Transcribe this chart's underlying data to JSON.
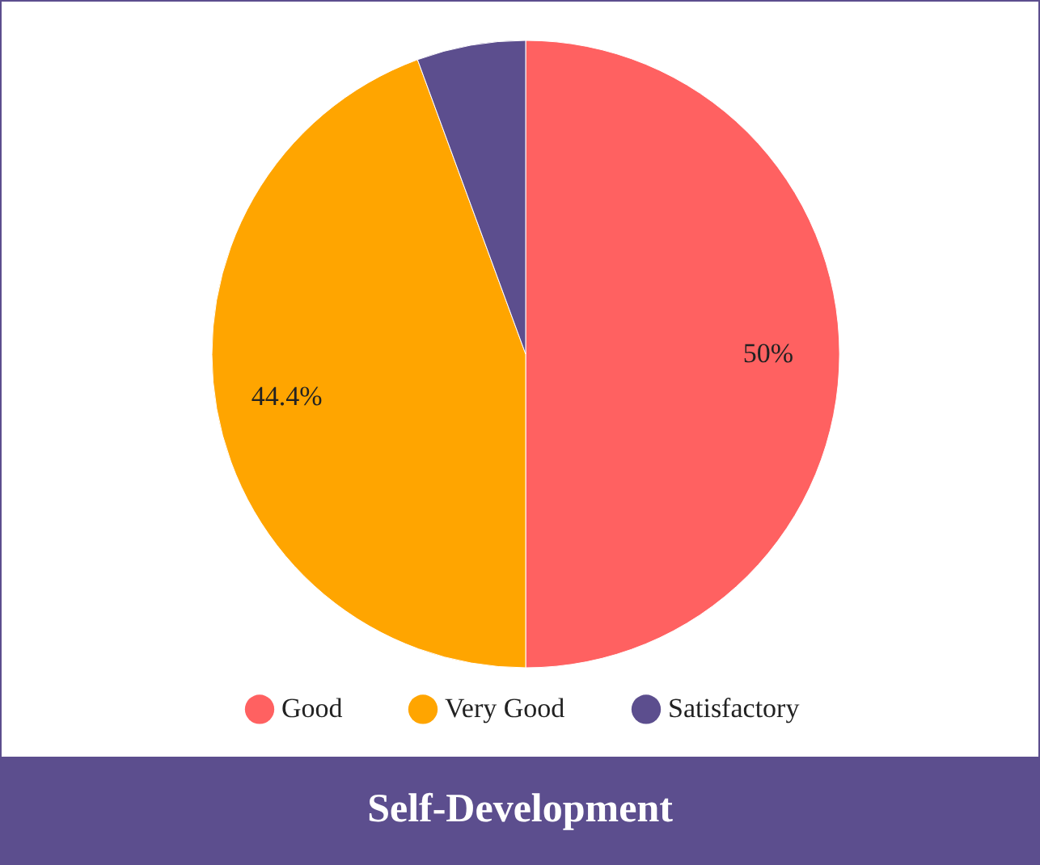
{
  "chart_data": {
    "type": "pie",
    "title": "Self-Development",
    "categories": [
      "Good",
      "Very Good",
      "Satisfactory"
    ],
    "values": [
      50,
      44.4,
      5.6
    ],
    "colors": [
      "#ff6161",
      "#ffa500",
      "#5c4e8e"
    ],
    "value_labels": [
      "50%",
      "44.4%",
      null
    ],
    "legend": "bottom"
  }
}
